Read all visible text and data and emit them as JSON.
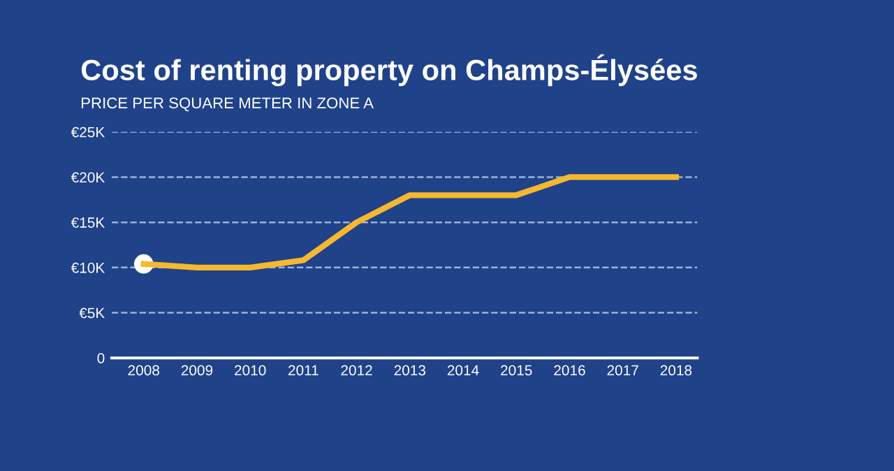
{
  "chart_data": {
    "type": "line",
    "title": "Cost of renting property on Champs-Élysées",
    "subtitle": "PRICE PER SQUARE METER IN ZONE A",
    "x": [
      2008,
      2009,
      2010,
      2011,
      2012,
      2013,
      2014,
      2015,
      2016,
      2017,
      2018
    ],
    "series": [
      {
        "color": "#f5b82e",
        "values": [
          10.4,
          10.0,
          10.0,
          10.8,
          15.0,
          18.0,
          18.0,
          18.0,
          20.0,
          20.0,
          20.0
        ]
      },
      {
        "type": "scatter",
        "color": "#ffffff",
        "x": [
          2008
        ],
        "values": [
          10.4
        ]
      }
    ],
    "xlim": [
      2007.4,
      2018.4
    ],
    "xticks": [
      2008,
      2009,
      2010,
      2011,
      2012,
      2013,
      2014,
      2015,
      2016,
      2017,
      2018
    ],
    "ylim": [
      0,
      25
    ],
    "yticks": [
      0,
      {
        "value": 5,
        "label": "€5K"
      },
      {
        "value": 10,
        "label": "€10K"
      },
      {
        "value": 15,
        "label": "€15K"
      },
      {
        "value": 20,
        "label": "€20K"
      },
      {
        "value": 25,
        "label": "€25K"
      }
    ],
    "grid": "y",
    "line_style": "solid",
    "legend": false
  }
}
